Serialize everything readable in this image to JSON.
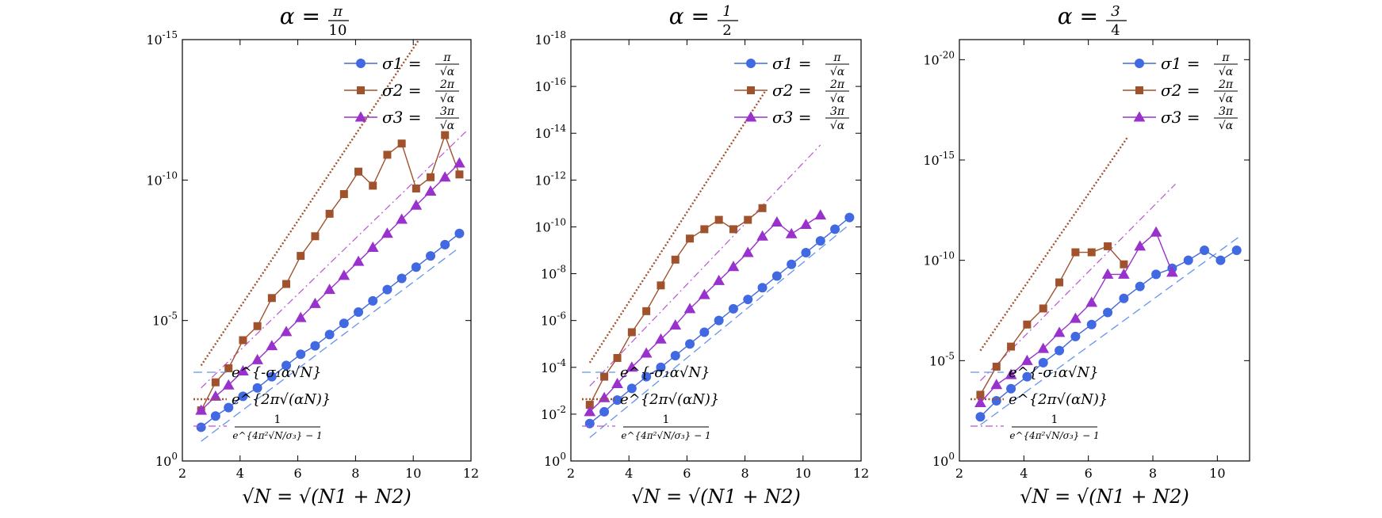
{
  "chart_data": [
    {
      "type": "line",
      "title": "α = π/10",
      "title_lhs": "α =",
      "title_num": "π",
      "title_den": "10",
      "xlabel": "√N = √(N1 + N2)",
      "ylabel": "",
      "xlim": [
        2,
        12
      ],
      "ylim_exp": [
        -15,
        0
      ],
      "x_ticks": [
        2,
        4,
        6,
        8,
        10,
        12
      ],
      "y_ticks": [
        {
          "exp": 0,
          "label": "10^0"
        },
        {
          "exp": -5,
          "label": "10^-5"
        },
        {
          "exp": -10,
          "label": "10^-10"
        },
        {
          "exp": -15,
          "label": "10^-15"
        }
      ],
      "legend_top": [
        {
          "name": "σ1 = π/√α",
          "lhs": "σ1 =",
          "num": "π",
          "den": "√α",
          "marker": "circle",
          "color": "#4169E1"
        },
        {
          "name": "σ2 = 2π/√α",
          "lhs": "σ2 =",
          "num": "2π",
          "den": "√α",
          "marker": "square",
          "color": "#A0522D"
        },
        {
          "name": "σ3 = 3π/√α",
          "lhs": "σ3 =",
          "num": "3π",
          "den": "√α",
          "marker": "triangle",
          "color": "#9932CC"
        }
      ],
      "legend_bottom": [
        {
          "name": "e^{-σ1 α √N}",
          "label": "e^{-σ₁α√N}",
          "style": "dashed",
          "color": "#6495ED"
        },
        {
          "name": "e^{2π √(αN)}",
          "label": "e^{2π√(αN)}",
          "style": "dotted",
          "color": "#A0522D"
        },
        {
          "name": "1/(e^{4π²√N/σ3} − 1)",
          "label_num": "1",
          "label_den": "e^{4π²√N/σ₃} − 1",
          "style": "dashdot",
          "color": "#BA55D3"
        }
      ],
      "series": [
        {
          "name": "σ1",
          "x": [
            2.65,
            3.15,
            3.6,
            4.1,
            4.6,
            5.1,
            5.6,
            6.1,
            6.6,
            7.1,
            7.6,
            8.1,
            8.6,
            9.1,
            9.6,
            10.1,
            10.6,
            11.1,
            11.6
          ],
          "y_exp": [
            -1.2,
            -1.6,
            -1.9,
            -2.3,
            -2.6,
            -3.0,
            -3.4,
            -3.8,
            -4.1,
            -4.5,
            -4.9,
            -5.3,
            -5.7,
            -6.1,
            -6.5,
            -6.9,
            -7.3,
            -7.7,
            -8.1
          ]
        },
        {
          "name": "σ2",
          "x": [
            2.65,
            3.15,
            3.6,
            4.1,
            4.6,
            5.1,
            5.6,
            6.1,
            6.6,
            7.1,
            7.6,
            8.1,
            8.6,
            9.1,
            9.6,
            10.1,
            10.6,
            11.1,
            11.6
          ],
          "y_exp": [
            -1.8,
            -2.8,
            -3.3,
            -4.3,
            -4.8,
            -5.8,
            -6.3,
            -7.3,
            -8.0,
            -8.8,
            -9.5,
            -10.3,
            -9.8,
            -10.9,
            -11.3,
            -9.7,
            -10.1,
            -11.6,
            -10.2
          ]
        },
        {
          "name": "σ3",
          "x": [
            2.65,
            3.15,
            3.6,
            4.1,
            4.6,
            5.1,
            5.6,
            6.1,
            6.6,
            7.1,
            7.6,
            8.1,
            8.6,
            9.1,
            9.6,
            10.1,
            10.6,
            11.1,
            11.6
          ],
          "y_exp": [
            -1.8,
            -2.3,
            -2.7,
            -3.2,
            -3.6,
            -4.1,
            -4.6,
            -5.1,
            -5.6,
            -6.1,
            -6.6,
            -7.1,
            -7.6,
            -8.1,
            -8.6,
            -9.1,
            -9.6,
            -10.1,
            -10.6
          ]
        }
      ],
      "ref_lines": [
        {
          "name": "dashed",
          "x": [
            2.65,
            11.6
          ],
          "y_exp": [
            -0.7,
            -7.6
          ]
        },
        {
          "name": "dotted",
          "x": [
            2.65,
            10.2
          ],
          "y_exp": [
            -3.4,
            -15.0
          ]
        },
        {
          "name": "dashdot",
          "x": [
            2.65,
            11.9
          ],
          "y_exp": [
            -2.6,
            -11.8
          ]
        }
      ]
    },
    {
      "type": "line",
      "title": "α = 1/2",
      "title_lhs": "α =",
      "title_num": "1",
      "title_den": "2",
      "xlabel": "√N = √(N1 + N2)",
      "ylabel": "",
      "xlim": [
        2,
        12
      ],
      "ylim_exp": [
        -18,
        0
      ],
      "x_ticks": [
        2,
        4,
        6,
        8,
        10,
        12
      ],
      "y_ticks": [
        {
          "exp": 0,
          "label": "10^0"
        },
        {
          "exp": -2,
          "label": "10^-2"
        },
        {
          "exp": -4,
          "label": "10^-4"
        },
        {
          "exp": -6,
          "label": "10^-6"
        },
        {
          "exp": -8,
          "label": "10^-8"
        },
        {
          "exp": -10,
          "label": "10^-10"
        },
        {
          "exp": -12,
          "label": "10^-12"
        },
        {
          "exp": -14,
          "label": "10^-14"
        },
        {
          "exp": -16,
          "label": "10^-16"
        },
        {
          "exp": -18,
          "label": "10^-18"
        }
      ],
      "legend_top": [
        {
          "name": "σ1 = π/√α",
          "lhs": "σ1 =",
          "num": "π",
          "den": "√α",
          "marker": "circle",
          "color": "#4169E1"
        },
        {
          "name": "σ2 = 2π/√α",
          "lhs": "σ2 =",
          "num": "2π",
          "den": "√α",
          "marker": "square",
          "color": "#A0522D"
        },
        {
          "name": "σ3 = 3π/√α",
          "lhs": "σ3 =",
          "num": "3π",
          "den": "√α",
          "marker": "triangle",
          "color": "#9932CC"
        }
      ],
      "legend_bottom": [
        {
          "name": "e^{-σ1 α √N}",
          "label": "e^{-σ₁α√N}",
          "style": "dashed",
          "color": "#6495ED"
        },
        {
          "name": "e^{2π √(αN)}",
          "label": "e^{2π√(αN)}",
          "style": "dotted",
          "color": "#A0522D"
        },
        {
          "name": "1/(e^{4π²√N/σ3} − 1)",
          "label_num": "1",
          "label_den": "e^{4π²√N/σ₃} − 1",
          "style": "dashdot",
          "color": "#BA55D3"
        }
      ],
      "series": [
        {
          "name": "σ1",
          "x": [
            2.65,
            3.15,
            3.6,
            4.1,
            4.6,
            5.1,
            5.6,
            6.1,
            6.6,
            7.1,
            7.6,
            8.1,
            8.6,
            9.1,
            9.6,
            10.1,
            10.6,
            11.1,
            11.6
          ],
          "y_exp": [
            -1.6,
            -2.1,
            -2.6,
            -3.1,
            -3.6,
            -4.0,
            -4.5,
            -5.0,
            -5.5,
            -6.0,
            -6.5,
            -6.9,
            -7.4,
            -7.9,
            -8.4,
            -8.9,
            -9.4,
            -9.9,
            -10.4
          ]
        },
        {
          "name": "σ2",
          "x": [
            2.65,
            3.15,
            3.6,
            4.1,
            4.6,
            5.1,
            5.6,
            6.1,
            6.6,
            7.1,
            7.6,
            8.1,
            8.6
          ],
          "y_exp": [
            -2.4,
            -3.6,
            -4.4,
            -5.5,
            -6.4,
            -7.5,
            -8.6,
            -9.5,
            -9.9,
            -10.3,
            -9.9,
            -10.3,
            -10.8
          ]
        },
        {
          "name": "σ3",
          "x": [
            2.65,
            3.15,
            3.6,
            4.1,
            4.6,
            5.1,
            5.6,
            6.1,
            6.6,
            7.1,
            7.6,
            8.1,
            8.6,
            9.1,
            9.6,
            10.1,
            10.6
          ],
          "y_exp": [
            -2.1,
            -2.7,
            -3.3,
            -4.0,
            -4.6,
            -5.2,
            -5.8,
            -6.5,
            -7.1,
            -7.7,
            -8.3,
            -8.9,
            -9.6,
            -10.2,
            -9.7,
            -10.1,
            -10.5
          ]
        }
      ],
      "ref_lines": [
        {
          "name": "dashed",
          "x": [
            2.65,
            11.6
          ],
          "y_exp": [
            -1.0,
            -10.1
          ]
        },
        {
          "name": "dotted",
          "x": [
            2.65,
            8.7
          ],
          "y_exp": [
            -4.2,
            -15.8
          ]
        },
        {
          "name": "dashdot",
          "x": [
            2.65,
            10.6
          ],
          "y_exp": [
            -3.2,
            -13.5
          ]
        }
      ]
    },
    {
      "type": "line",
      "title": "α = 3/4",
      "title_lhs": "α =",
      "title_num": "3",
      "title_den": "4",
      "xlabel": "√N = √(N1 + N2)",
      "ylabel": "",
      "xlim": [
        2,
        11
      ],
      "ylim_exp": [
        -21,
        0
      ],
      "x_ticks": [
        2,
        4,
        6,
        8,
        10
      ],
      "y_ticks": [
        {
          "exp": 0,
          "label": "10^0"
        },
        {
          "exp": -5,
          "label": "10^-5"
        },
        {
          "exp": -10,
          "label": "10^-10"
        },
        {
          "exp": -15,
          "label": "10^-15"
        },
        {
          "exp": -20,
          "label": "10^-20"
        }
      ],
      "legend_top": [
        {
          "name": "σ1 = π/√α",
          "lhs": "σ1 =",
          "num": "π",
          "den": "√α",
          "marker": "circle",
          "color": "#4169E1"
        },
        {
          "name": "σ2 = 2π/√α",
          "lhs": "σ2 =",
          "num": "2π",
          "den": "√α",
          "marker": "square",
          "color": "#A0522D"
        },
        {
          "name": "σ3 = 3π/√α",
          "lhs": "σ3 =",
          "num": "3π",
          "den": "√α",
          "marker": "triangle",
          "color": "#9932CC"
        }
      ],
      "legend_bottom": [
        {
          "name": "e^{-σ1 α √N}",
          "label": "e^{-σ₁α√N}",
          "style": "dashed",
          "color": "#6495ED"
        },
        {
          "name": "e^{2π √(αN)}",
          "label": "e^{2π√(αN)}",
          "style": "dotted",
          "color": "#A0522D"
        },
        {
          "name": "1/(e^{4π²√N/σ3} − 1)",
          "label_num": "1",
          "label_den": "e^{4π²√N/σ₃} − 1",
          "style": "dashdot",
          "color": "#BA55D3"
        }
      ],
      "series": [
        {
          "name": "σ1",
          "x": [
            2.65,
            3.15,
            3.6,
            4.1,
            4.6,
            5.1,
            5.6,
            6.1,
            6.6,
            7.1,
            7.6,
            8.1,
            8.6,
            9.1,
            9.6,
            10.1,
            10.6
          ],
          "y_exp": [
            -2.2,
            -3.0,
            -3.6,
            -4.2,
            -4.9,
            -5.5,
            -6.2,
            -6.8,
            -7.4,
            -8.1,
            -8.7,
            -9.3,
            -9.6,
            -10.0,
            -10.5,
            -10.0,
            -10.5
          ]
        },
        {
          "name": "σ2",
          "x": [
            2.65,
            3.15,
            3.6,
            4.1,
            4.6,
            5.1,
            5.6,
            6.1,
            6.6,
            7.1
          ],
          "y_exp": [
            -3.3,
            -4.7,
            -5.7,
            -6.8,
            -7.6,
            -8.9,
            -10.4,
            -10.4,
            -10.7,
            -9.8
          ]
        },
        {
          "name": "σ3",
          "x": [
            2.65,
            3.15,
            3.6,
            4.1,
            4.6,
            5.1,
            5.6,
            6.1,
            6.6,
            7.1,
            7.6,
            8.1,
            8.6
          ],
          "y_exp": [
            -2.9,
            -3.8,
            -4.3,
            -5.0,
            -5.6,
            -6.4,
            -7.1,
            -7.9,
            -9.3,
            -9.3,
            -10.7,
            -11.4,
            -9.4
          ]
        }
      ],
      "ref_lines": [
        {
          "name": "dashed",
          "x": [
            2.65,
            10.7
          ],
          "y_exp": [
            -1.8,
            -11.2
          ]
        },
        {
          "name": "dotted",
          "x": [
            2.65,
            7.2
          ],
          "y_exp": [
            -5.5,
            -16.1
          ]
        },
        {
          "name": "dashdot",
          "x": [
            2.65,
            8.7
          ],
          "y_exp": [
            -4.0,
            -13.8
          ]
        }
      ]
    }
  ]
}
